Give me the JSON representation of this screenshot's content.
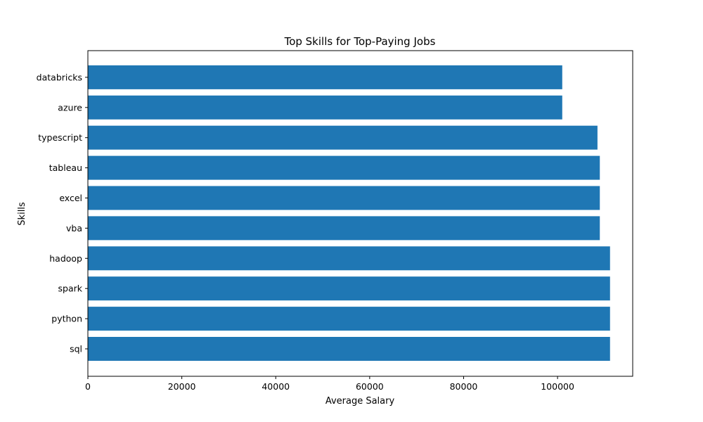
{
  "chart_data": {
    "type": "bar",
    "orientation": "horizontal",
    "title": "Top Skills for Top-Paying Jobs",
    "xlabel": "Average Salary",
    "ylabel": "Skills",
    "categories": [
      "sql",
      "python",
      "spark",
      "hadoop",
      "vba",
      "excel",
      "tableau",
      "typescript",
      "azure",
      "databricks"
    ],
    "values": [
      111175,
      111175,
      111175,
      111175,
      109000,
      109000,
      109000,
      108500,
      101000,
      101000
    ],
    "xlim": [
      0,
      116000
    ],
    "xticks": [
      0,
      20000,
      40000,
      60000,
      80000,
      100000
    ],
    "xtick_labels": [
      "0",
      "20000",
      "40000",
      "60000",
      "80000",
      "100000"
    ],
    "bar_color": "#1f77b4",
    "grid": false,
    "legend": "none"
  }
}
